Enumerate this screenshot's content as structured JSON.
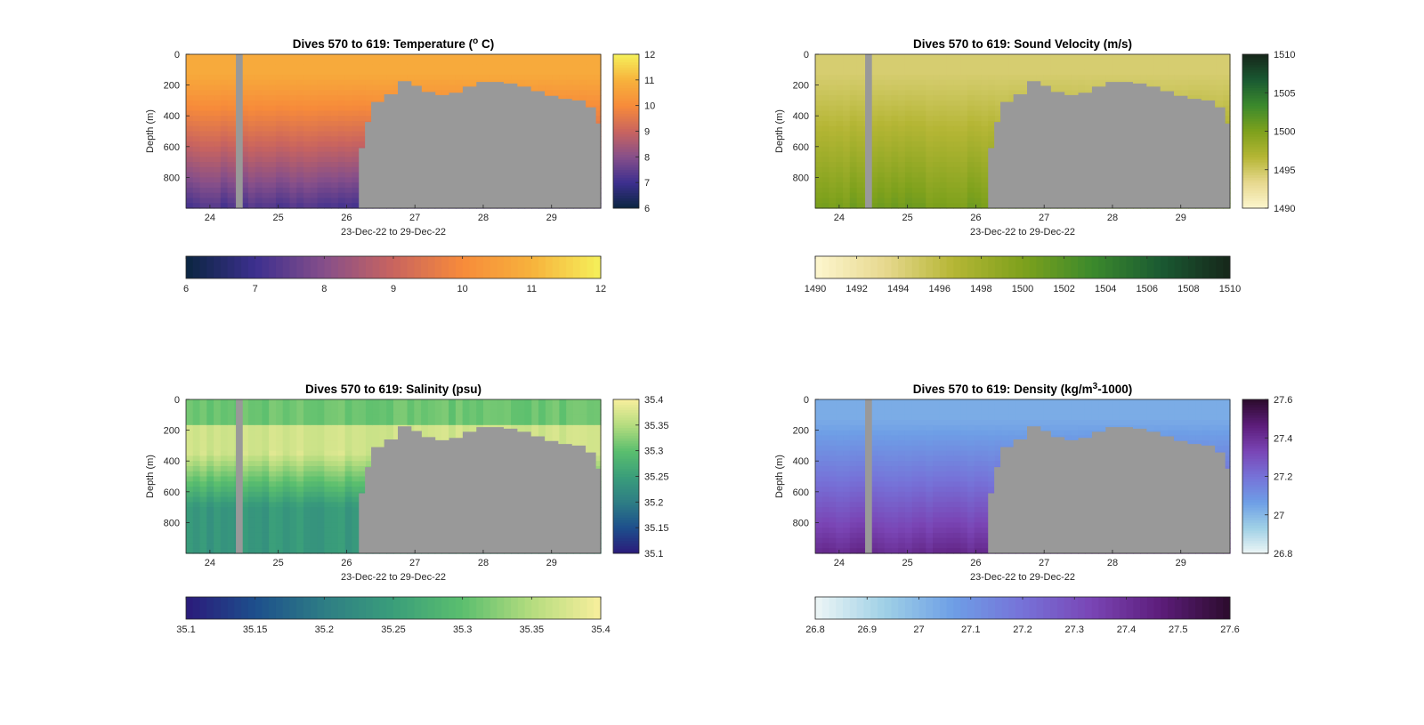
{
  "colors": {
    "land": "#999999",
    "axis": "#262626"
  },
  "chart_data": [
    {
      "type": "heatmap",
      "title": "Dives 570 to 619: Temperature (",
      "title_sup": "o",
      "title_after": " C)",
      "xlabel": "23-Dec-22 to 29-Dec-22",
      "ylabel": "Depth (m)",
      "x_ticks": [
        "24",
        "25",
        "26",
        "27",
        "28",
        "29"
      ],
      "y_ticks": [
        "0",
        "200",
        "400",
        "600",
        "800"
      ],
      "xlim": [
        23.65,
        29.72
      ],
      "ylim": [
        0,
        1000
      ],
      "colorbar_ticks": [
        "6",
        "7",
        "8",
        "9",
        "10",
        "11",
        "12"
      ],
      "horizontal_colorbar_ticks": [
        "6",
        "7",
        "8",
        "9",
        "10",
        "11",
        "12"
      ],
      "clim": [
        6,
        12
      ],
      "colormap": [
        "#0b2640",
        "#3c2f8f",
        "#864f8a",
        "#c9645f",
        "#f78b3a",
        "#f7b23c",
        "#f5f05a"
      ],
      "surface_value": 10.8,
      "deep_value": 7.2,
      "gap": [
        24.38,
        24.48
      ],
      "bottom_depth": [
        [
          26.18,
          610
        ],
        [
          26.27,
          440
        ],
        [
          26.36,
          310
        ],
        [
          26.55,
          260
        ],
        [
          26.75,
          175
        ],
        [
          26.95,
          205
        ],
        [
          27.1,
          245
        ],
        [
          27.3,
          265
        ],
        [
          27.5,
          250
        ],
        [
          27.7,
          210
        ],
        [
          27.9,
          180
        ],
        [
          28.1,
          180
        ],
        [
          28.3,
          190
        ],
        [
          28.5,
          210
        ],
        [
          28.7,
          240
        ],
        [
          28.9,
          270
        ],
        [
          29.1,
          290
        ],
        [
          29.3,
          300
        ],
        [
          29.5,
          345
        ],
        [
          29.65,
          450
        ]
      ]
    },
    {
      "type": "heatmap",
      "title": "Dives 570 to 619: Sound Velocity (m/s)",
      "xlabel": "23-Dec-22 to 29-Dec-22",
      "ylabel": "Depth (m)",
      "x_ticks": [
        "24",
        "25",
        "26",
        "27",
        "28",
        "29"
      ],
      "y_ticks": [
        "0",
        "200",
        "400",
        "600",
        "800"
      ],
      "xlim": [
        23.65,
        29.72
      ],
      "ylim": [
        0,
        1000
      ],
      "colorbar_ticks": [
        "1490",
        "1495",
        "1500",
        "1505",
        "1510"
      ],
      "horizontal_colorbar_ticks": [
        "1490",
        "1492",
        "1494",
        "1496",
        "1498",
        "1500",
        "1502",
        "1504",
        "1506",
        "1508",
        "1510"
      ],
      "clim": [
        1490,
        1510
      ],
      "colormap": [
        "#fdf6cf",
        "#e7d98f",
        "#b5b635",
        "#7ea11c",
        "#3c8a2c",
        "#1a5a32",
        "#16261a"
      ],
      "surface_value": 1494.5,
      "deep_value": 1500.5,
      "gap": [
        24.38,
        24.48
      ],
      "bottom_depth": [
        [
          26.18,
          610
        ],
        [
          26.27,
          440
        ],
        [
          26.36,
          310
        ],
        [
          26.55,
          260
        ],
        [
          26.75,
          175
        ],
        [
          26.95,
          205
        ],
        [
          27.1,
          245
        ],
        [
          27.3,
          265
        ],
        [
          27.5,
          250
        ],
        [
          27.7,
          210
        ],
        [
          27.9,
          180
        ],
        [
          28.1,
          180
        ],
        [
          28.3,
          190
        ],
        [
          28.5,
          210
        ],
        [
          28.7,
          240
        ],
        [
          28.9,
          270
        ],
        [
          29.1,
          290
        ],
        [
          29.3,
          300
        ],
        [
          29.5,
          345
        ],
        [
          29.65,
          450
        ]
      ]
    },
    {
      "type": "heatmap",
      "title": "Dives 570 to 619: Salinity (psu)",
      "xlabel": "23-Dec-22 to 29-Dec-22",
      "ylabel": "Depth (m)",
      "x_ticks": [
        "24",
        "25",
        "26",
        "27",
        "28",
        "29"
      ],
      "y_ticks": [
        "0",
        "200",
        "400",
        "600",
        "800"
      ],
      "xlim": [
        23.65,
        29.72
      ],
      "ylim": [
        0,
        1000
      ],
      "colorbar_ticks": [
        "35.1",
        "35.15",
        "35.2",
        "35.25",
        "35.3",
        "35.35",
        "35.4"
      ],
      "horizontal_colorbar_ticks": [
        "35.1",
        "35.15",
        "35.2",
        "35.25",
        "35.3",
        "35.35",
        "35.4"
      ],
      "clim": [
        35.1,
        35.4
      ],
      "colormap": [
        "#2b1a7a",
        "#1d4f8c",
        "#2e7d85",
        "#3a9e7a",
        "#5bbf6e",
        "#b5dc7f",
        "#f8ef9c"
      ],
      "surface_value": 35.31,
      "mid_value": 35.37,
      "deep_value": 35.24,
      "gap": [
        24.38,
        24.48
      ],
      "bottom_depth": [
        [
          26.18,
          610
        ],
        [
          26.27,
          440
        ],
        [
          26.36,
          310
        ],
        [
          26.55,
          260
        ],
        [
          26.75,
          175
        ],
        [
          26.95,
          205
        ],
        [
          27.1,
          245
        ],
        [
          27.3,
          265
        ],
        [
          27.5,
          250
        ],
        [
          27.7,
          210
        ],
        [
          27.9,
          180
        ],
        [
          28.1,
          180
        ],
        [
          28.3,
          190
        ],
        [
          28.5,
          210
        ],
        [
          28.7,
          240
        ],
        [
          28.9,
          270
        ],
        [
          29.1,
          290
        ],
        [
          29.3,
          300
        ],
        [
          29.5,
          345
        ],
        [
          29.65,
          450
        ]
      ]
    },
    {
      "type": "heatmap",
      "title": "Dives 570 to 619: Density (kg/m",
      "title_sup": "3",
      "title_after": "-1000)",
      "xlabel": "23-Dec-22 to 29-Dec-22",
      "ylabel": "Depth (m)",
      "x_ticks": [
        "24",
        "25",
        "26",
        "27",
        "28",
        "29"
      ],
      "y_ticks": [
        "0",
        "200",
        "400",
        "600",
        "800"
      ],
      "xlim": [
        23.65,
        29.72
      ],
      "ylim": [
        0,
        1000
      ],
      "colorbar_ticks": [
        "26.8",
        "27",
        "27.2",
        "27.4",
        "27.6"
      ],
      "horizontal_colorbar_ticks": [
        "26.8",
        "26.9",
        "27",
        "27.1",
        "27.2",
        "27.3",
        "27.4",
        "27.5",
        "27.6"
      ],
      "clim": [
        26.8,
        27.6
      ],
      "colormap": [
        "#eef6f6",
        "#9fd0e6",
        "#6e9ee6",
        "#7672d8",
        "#7a45b5",
        "#5c1d7a",
        "#2c0b2c"
      ],
      "surface_value": 27.03,
      "deep_value": 27.42,
      "gap": [
        24.38,
        24.48
      ],
      "bottom_depth": [
        [
          26.18,
          610
        ],
        [
          26.27,
          440
        ],
        [
          26.36,
          310
        ],
        [
          26.55,
          260
        ],
        [
          26.75,
          175
        ],
        [
          26.95,
          205
        ],
        [
          27.1,
          245
        ],
        [
          27.3,
          265
        ],
        [
          27.5,
          250
        ],
        [
          27.7,
          210
        ],
        [
          27.9,
          180
        ],
        [
          28.1,
          180
        ],
        [
          28.3,
          190
        ],
        [
          28.5,
          210
        ],
        [
          28.7,
          240
        ],
        [
          28.9,
          270
        ],
        [
          29.1,
          290
        ],
        [
          29.3,
          300
        ],
        [
          29.5,
          345
        ],
        [
          29.65,
          450
        ]
      ]
    }
  ]
}
